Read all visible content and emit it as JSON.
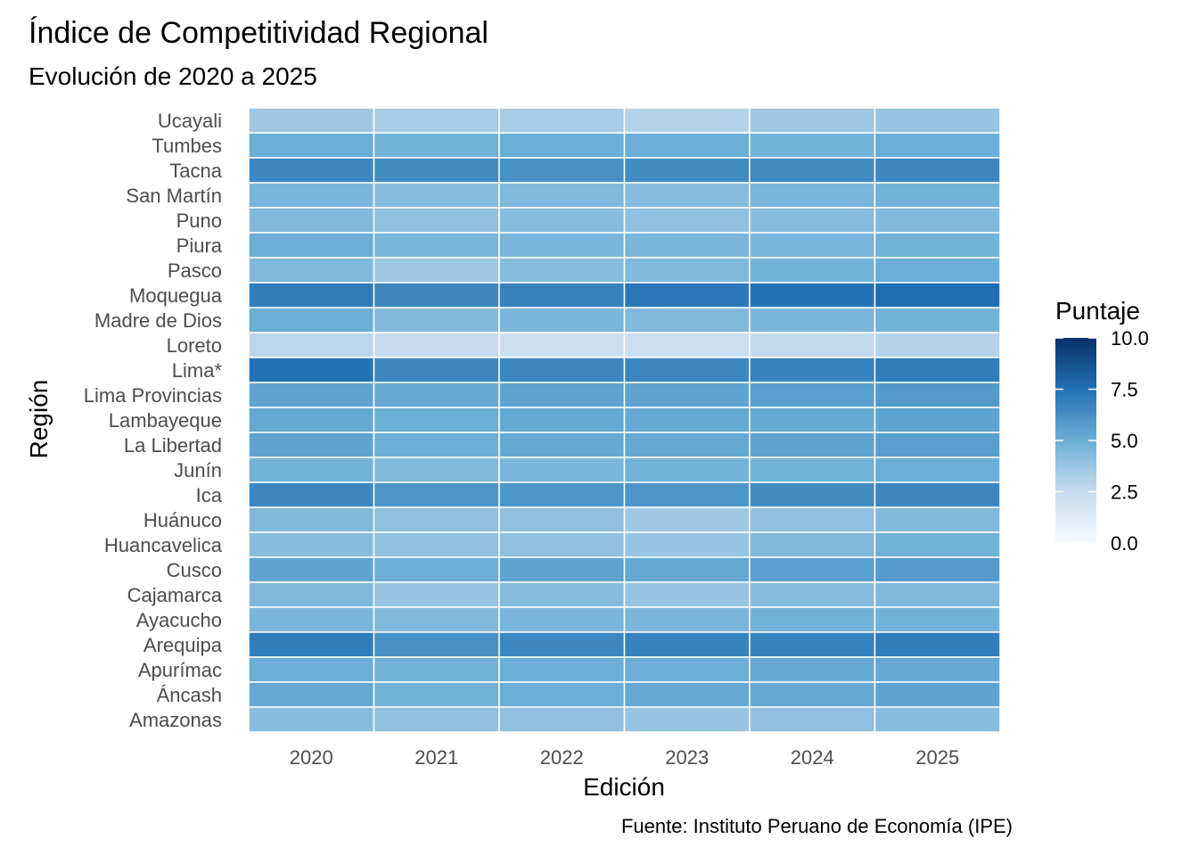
{
  "chart_data": {
    "type": "heatmap",
    "title": "Índice de Competitividad Regional",
    "subtitle": "Evolución de 2020 a 2025",
    "xlabel": "Edición",
    "ylabel": "Región",
    "caption": "Fuente: Instituto Peruano de Economía (IPE)",
    "x": [
      "2020",
      "2021",
      "2022",
      "2023",
      "2024",
      "2025"
    ],
    "y": [
      "Ucayali",
      "Tumbes",
      "Tacna",
      "San Martín",
      "Puno",
      "Piura",
      "Pasco",
      "Moquegua",
      "Madre de Dios",
      "Loreto",
      "Lima*",
      "Lima Provincias",
      "Lambayeque",
      "La Libertad",
      "Junín",
      "Ica",
      "Huánuco",
      "Huancavelica",
      "Cusco",
      "Cajamarca",
      "Ayacucho",
      "Arequipa",
      "Apurímac",
      "Áncash",
      "Amazonas"
    ],
    "values": [
      [
        3.6,
        3.4,
        3.4,
        3.0,
        3.6,
        3.8
      ],
      [
        5.0,
        4.8,
        5.0,
        5.0,
        4.8,
        5.0
      ],
      [
        6.6,
        6.4,
        6.2,
        6.4,
        6.4,
        6.6
      ],
      [
        4.6,
        4.2,
        4.4,
        4.2,
        4.6,
        4.8
      ],
      [
        4.4,
        4.0,
        4.2,
        4.0,
        4.2,
        4.4
      ],
      [
        5.0,
        4.6,
        4.6,
        4.6,
        4.6,
        4.8
      ],
      [
        4.4,
        3.6,
        4.2,
        4.4,
        4.8,
        5.0
      ],
      [
        7.0,
        6.6,
        6.8,
        7.2,
        7.4,
        7.6
      ],
      [
        5.0,
        4.4,
        4.6,
        4.4,
        4.6,
        4.8
      ],
      [
        2.8,
        2.4,
        2.2,
        2.2,
        2.6,
        3.0
      ],
      [
        7.4,
        6.6,
        6.6,
        6.6,
        6.8,
        7.0
      ],
      [
        5.4,
        5.2,
        5.4,
        5.4,
        5.6,
        5.8
      ],
      [
        5.2,
        5.0,
        5.2,
        5.2,
        5.2,
        5.4
      ],
      [
        5.4,
        5.0,
        5.2,
        5.2,
        5.4,
        5.6
      ],
      [
        4.8,
        4.4,
        4.6,
        4.8,
        4.8,
        5.0
      ],
      [
        6.6,
        6.0,
        6.0,
        6.0,
        6.4,
        6.6
      ],
      [
        4.4,
        4.0,
        4.0,
        3.6,
        4.0,
        4.4
      ],
      [
        4.2,
        4.0,
        4.0,
        3.8,
        4.4,
        4.8
      ],
      [
        5.4,
        5.0,
        5.4,
        5.2,
        5.6,
        5.8
      ],
      [
        4.4,
        3.8,
        4.2,
        3.8,
        4.2,
        4.4
      ],
      [
        4.6,
        4.4,
        4.6,
        4.6,
        4.8,
        4.8
      ],
      [
        7.0,
        6.2,
        6.6,
        6.8,
        6.8,
        7.0
      ],
      [
        5.0,
        4.8,
        5.0,
        5.0,
        5.2,
        5.2
      ],
      [
        5.2,
        4.8,
        5.0,
        5.2,
        5.2,
        5.4
      ],
      [
        4.2,
        4.0,
        4.0,
        3.8,
        4.0,
        4.2
      ]
    ],
    "legend": {
      "title": "Puntaje",
      "min": 0,
      "max": 10,
      "ticks": [
        "10.0",
        "7.5",
        "5.0",
        "2.5",
        "0.0"
      ],
      "tick_values": [
        10,
        7.5,
        5,
        2.5,
        0
      ],
      "placement": "right",
      "color_low": "#f7fbff",
      "color_mid": "#6baed6",
      "color_high": "#08306b"
    },
    "background_color": "#ffffff",
    "tile_border_color": "#ffffff"
  }
}
